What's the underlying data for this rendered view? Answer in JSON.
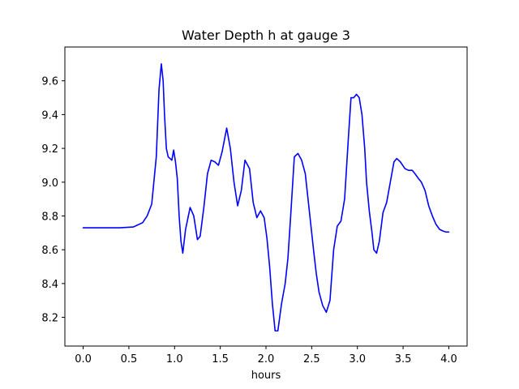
{
  "chart_data": {
    "type": "line",
    "title": "Water Depth h at gauge 3",
    "xlabel": "hours",
    "ylabel": "",
    "xlim": [
      -0.2,
      4.2
    ],
    "ylim": [
      8.03,
      9.8
    ],
    "xticks": [
      0.0,
      0.5,
      1.0,
      1.5,
      2.0,
      2.5,
      3.0,
      3.5,
      4.0
    ],
    "xtick_labels": [
      "0.0",
      "0.5",
      "1.0",
      "1.5",
      "2.0",
      "2.5",
      "3.0",
      "3.5",
      "4.0"
    ],
    "yticks": [
      8.2,
      8.4,
      8.6,
      8.8,
      9.0,
      9.2,
      9.4,
      9.6
    ],
    "ytick_labels": [
      "8.2",
      "8.4",
      "8.6",
      "8.8",
      "9.0",
      "9.2",
      "9.4",
      "9.6"
    ],
    "grid": false,
    "legend": "none",
    "series": [
      {
        "color": "#0000ff",
        "x": [
          0.0,
          0.2,
          0.4,
          0.55,
          0.65,
          0.7,
          0.75,
          0.8,
          0.83,
          0.855,
          0.875,
          0.89,
          0.91,
          0.93,
          0.95,
          0.97,
          0.99,
          1.01,
          1.03,
          1.05,
          1.07,
          1.09,
          1.12,
          1.17,
          1.21,
          1.25,
          1.28,
          1.32,
          1.36,
          1.4,
          1.44,
          1.48,
          1.52,
          1.57,
          1.61,
          1.65,
          1.69,
          1.73,
          1.77,
          1.82,
          1.86,
          1.9,
          1.94,
          1.98,
          2.01,
          2.04,
          2.07,
          2.1,
          2.13,
          2.17,
          2.21,
          2.24,
          2.27,
          2.31,
          2.35,
          2.39,
          2.43,
          2.47,
          2.52,
          2.55,
          2.58,
          2.62,
          2.66,
          2.7,
          2.74,
          2.78,
          2.82,
          2.86,
          2.9,
          2.93,
          2.96,
          2.99,
          3.02,
          3.05,
          3.08,
          3.1,
          3.13,
          3.16,
          3.18,
          3.21,
          3.24,
          3.28,
          3.32,
          3.36,
          3.4,
          3.43,
          3.47,
          3.52,
          3.56,
          3.6,
          3.63,
          3.67,
          3.7,
          3.74,
          3.78,
          3.82,
          3.86,
          3.9,
          3.94,
          3.97,
          4.0
        ],
        "y": [
          8.73,
          8.73,
          8.73,
          8.735,
          8.76,
          8.8,
          8.87,
          9.15,
          9.55,
          9.7,
          9.6,
          9.4,
          9.2,
          9.15,
          9.14,
          9.13,
          9.19,
          9.12,
          9.02,
          8.8,
          8.65,
          8.58,
          8.72,
          8.85,
          8.8,
          8.66,
          8.68,
          8.85,
          9.05,
          9.13,
          9.12,
          9.1,
          9.18,
          9.32,
          9.2,
          9.0,
          8.86,
          8.95,
          9.13,
          9.08,
          8.88,
          8.79,
          8.83,
          8.79,
          8.67,
          8.5,
          8.28,
          8.12,
          8.12,
          8.28,
          8.4,
          8.55,
          8.8,
          9.15,
          9.17,
          9.13,
          9.05,
          8.85,
          8.6,
          8.46,
          8.35,
          8.27,
          8.23,
          8.3,
          8.6,
          8.74,
          8.77,
          8.9,
          9.25,
          9.5,
          9.5,
          9.52,
          9.5,
          9.4,
          9.2,
          9.0,
          8.83,
          8.7,
          8.6,
          8.58,
          8.65,
          8.82,
          8.88,
          9.0,
          9.12,
          9.14,
          9.12,
          9.08,
          9.07,
          9.07,
          9.05,
          9.02,
          9.0,
          8.95,
          8.86,
          8.8,
          8.75,
          8.72,
          8.71,
          8.705,
          8.705
        ]
      }
    ]
  }
}
